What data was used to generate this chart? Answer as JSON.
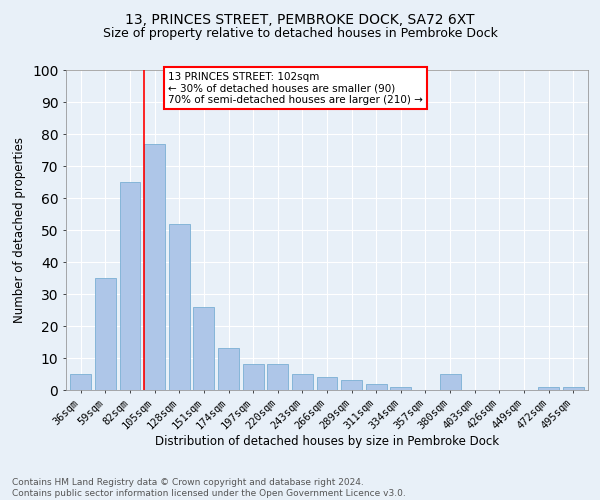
{
  "title1": "13, PRINCES STREET, PEMBROKE DOCK, SA72 6XT",
  "title2": "Size of property relative to detached houses in Pembroke Dock",
  "xlabel": "Distribution of detached houses by size in Pembroke Dock",
  "ylabel": "Number of detached properties",
  "bar_labels": [
    "36sqm",
    "59sqm",
    "82sqm",
    "105sqm",
    "128sqm",
    "151sqm",
    "174sqm",
    "197sqm",
    "220sqm",
    "243sqm",
    "266sqm",
    "289sqm",
    "311sqm",
    "334sqm",
    "357sqm",
    "380sqm",
    "403sqm",
    "426sqm",
    "449sqm",
    "472sqm",
    "495sqm"
  ],
  "bar_values": [
    5,
    35,
    65,
    77,
    52,
    26,
    13,
    8,
    8,
    5,
    4,
    3,
    2,
    1,
    0,
    5,
    0,
    0,
    0,
    1,
    1
  ],
  "bar_color": "#aec6e8",
  "bar_edge_color": "#7aafd4",
  "background_color": "#e8f0f8",
  "grid_color": "#ffffff",
  "vline_x_index": 3,
  "vline_color": "red",
  "annotation_text": "13 PRINCES STREET: 102sqm\n← 30% of detached houses are smaller (90)\n70% of semi-detached houses are larger (210) →",
  "annotation_box_color": "white",
  "annotation_box_edge_color": "red",
  "ylim": [
    0,
    100
  ],
  "footnote": "Contains HM Land Registry data © Crown copyright and database right 2024.\nContains public sector information licensed under the Open Government Licence v3.0.",
  "title1_fontsize": 10,
  "title2_fontsize": 9,
  "xlabel_fontsize": 8.5,
  "ylabel_fontsize": 8.5,
  "tick_fontsize": 7.5,
  "annotation_fontsize": 7.5,
  "footnote_fontsize": 6.5
}
